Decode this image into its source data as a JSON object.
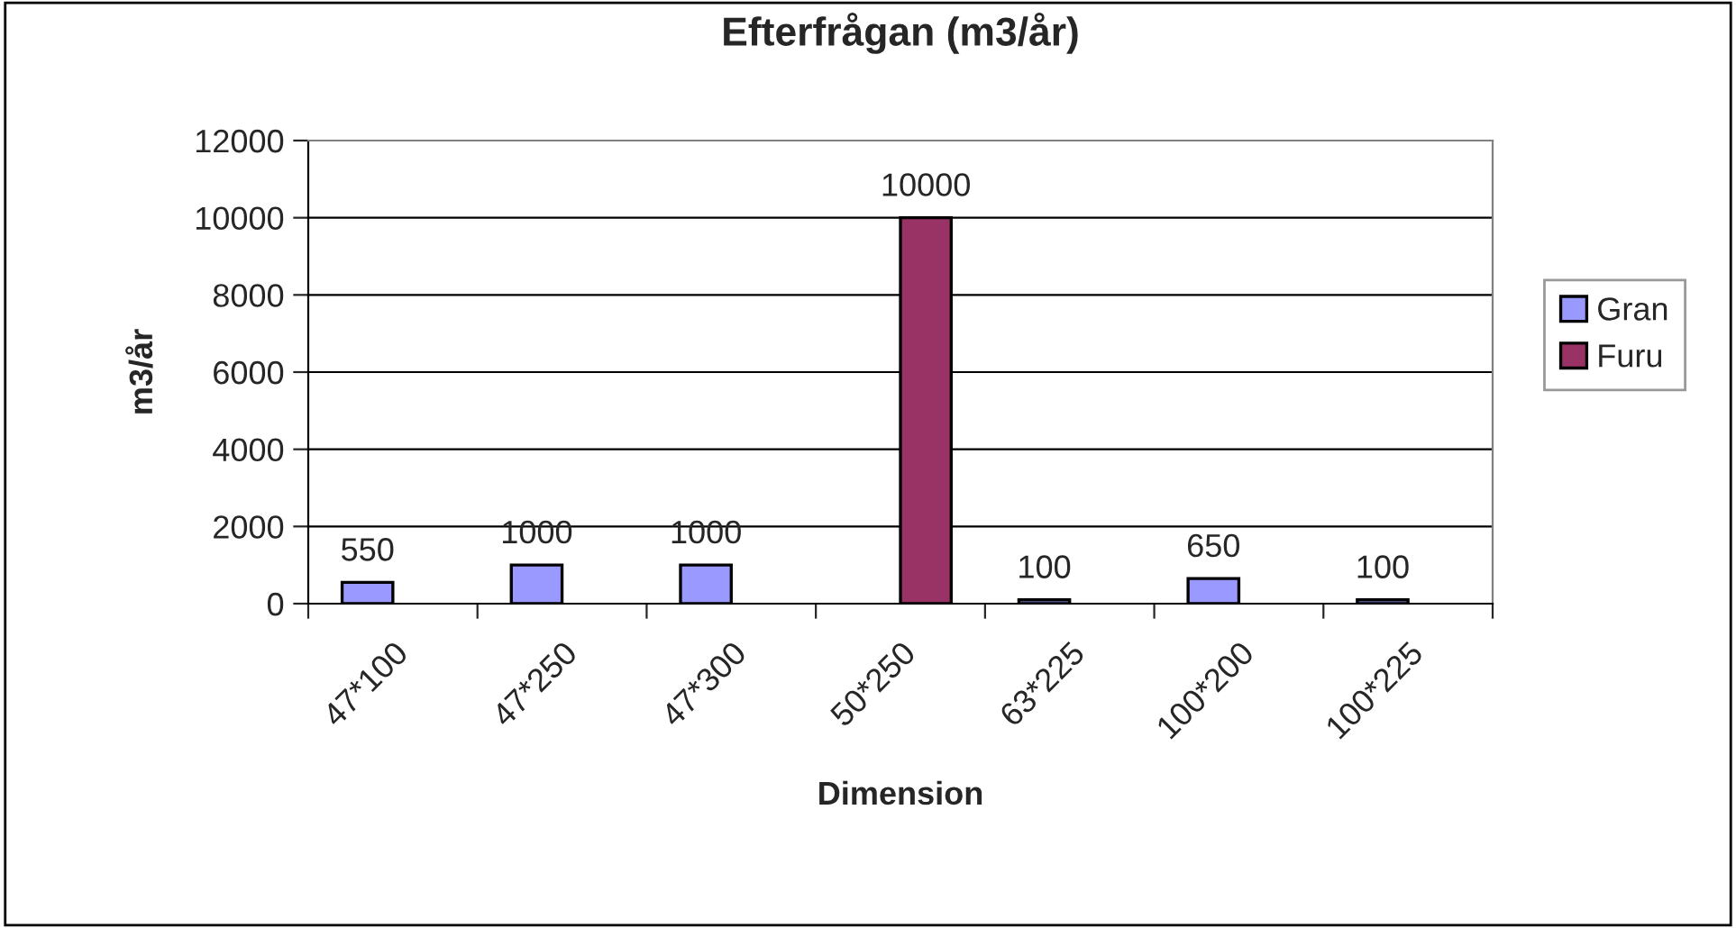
{
  "chart_data": {
    "type": "bar",
    "title": "Efterfrågan (m3/år)",
    "xlabel": "Dimension",
    "ylabel": "m3/år",
    "categories": [
      "47*100",
      "47*250",
      "47*300",
      "50*250",
      "63*225",
      "100*200",
      "100*225"
    ],
    "series": [
      {
        "name": "Gran",
        "color": "#9999ff",
        "values": [
          550,
          1000,
          1000,
          null,
          100,
          650,
          100
        ]
      },
      {
        "name": "Furu",
        "color": "#993366",
        "values": [
          null,
          null,
          null,
          10000,
          null,
          null,
          null
        ]
      }
    ],
    "ylim": [
      0,
      12000
    ],
    "yticks": [
      0,
      2000,
      4000,
      6000,
      8000,
      10000,
      12000
    ],
    "grid": "y",
    "legend": "right",
    "data_labels": true
  }
}
